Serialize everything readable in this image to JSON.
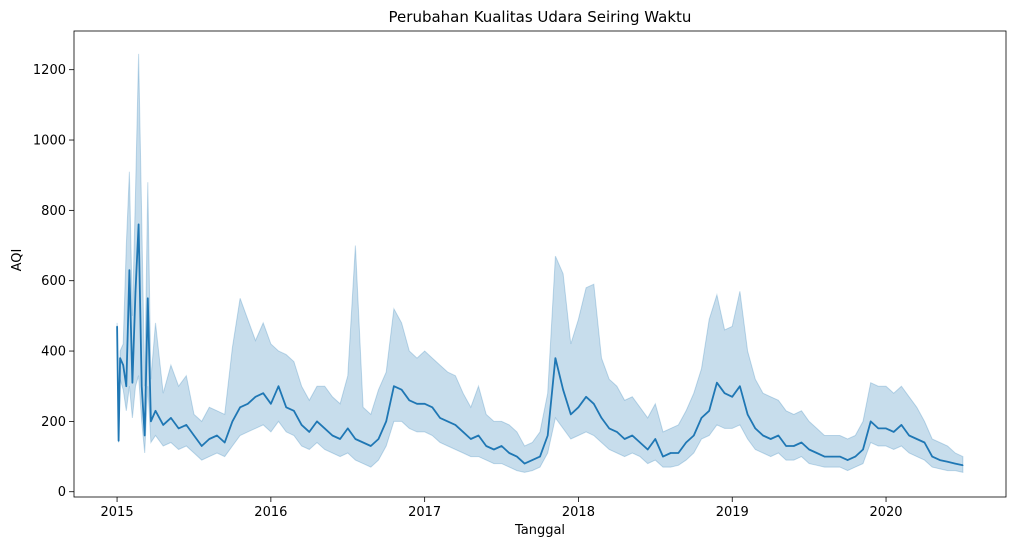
{
  "chart_data": {
    "type": "line",
    "title": "Perubahan Kualitas Udara Seiring Waktu",
    "xlabel": "Tanggal",
    "ylabel": "AQI",
    "xlim": [
      2014.72,
      2020.78
    ],
    "ylim": [
      -15,
      1310
    ],
    "x_ticks": [
      {
        "value": 2015,
        "label": "2015"
      },
      {
        "value": 2016,
        "label": "2016"
      },
      {
        "value": 2017,
        "label": "2017"
      },
      {
        "value": 2018,
        "label": "2018"
      },
      {
        "value": 2019,
        "label": "2019"
      },
      {
        "value": 2020,
        "label": "2020"
      }
    ],
    "y_ticks": [
      {
        "value": 0,
        "label": "0"
      },
      {
        "value": 200,
        "label": "200"
      },
      {
        "value": 400,
        "label": "400"
      },
      {
        "value": 600,
        "label": "600"
      },
      {
        "value": 800,
        "label": "800"
      },
      {
        "value": 1000,
        "label": "1000"
      },
      {
        "value": 1200,
        "label": "1200"
      }
    ],
    "grid": false,
    "legend": "none",
    "series": [
      {
        "color": "#1f77b4",
        "band_color": "#1f77b4",
        "band_opacity": 0.25,
        "x": [
          2015.0,
          2015.01,
          2015.02,
          2015.04,
          2015.06,
          2015.08,
          2015.1,
          2015.12,
          2015.14,
          2015.16,
          2015.18,
          2015.2,
          2015.22,
          2015.25,
          2015.3,
          2015.35,
          2015.4,
          2015.45,
          2015.5,
          2015.55,
          2015.6,
          2015.65,
          2015.7,
          2015.75,
          2015.8,
          2015.85,
          2015.9,
          2015.95,
          2016.0,
          2016.05,
          2016.1,
          2016.15,
          2016.2,
          2016.25,
          2016.3,
          2016.35,
          2016.4,
          2016.45,
          2016.5,
          2016.55,
          2016.6,
          2016.65,
          2016.7,
          2016.75,
          2016.8,
          2016.85,
          2016.9,
          2016.95,
          2017.0,
          2017.05,
          2017.1,
          2017.15,
          2017.2,
          2017.25,
          2017.3,
          2017.35,
          2017.4,
          2017.45,
          2017.5,
          2017.55,
          2017.6,
          2017.65,
          2017.7,
          2017.75,
          2017.8,
          2017.85,
          2017.9,
          2017.95,
          2018.0,
          2018.05,
          2018.1,
          2018.15,
          2018.2,
          2018.25,
          2018.3,
          2018.35,
          2018.4,
          2018.45,
          2018.5,
          2018.55,
          2018.6,
          2018.65,
          2018.7,
          2018.75,
          2018.8,
          2018.85,
          2018.9,
          2018.95,
          2019.0,
          2019.05,
          2019.1,
          2019.15,
          2019.2,
          2019.25,
          2019.3,
          2019.35,
          2019.4,
          2019.45,
          2019.5,
          2019.55,
          2019.6,
          2019.65,
          2019.7,
          2019.75,
          2019.8,
          2019.85,
          2019.9,
          2019.95,
          2020.0,
          2020.05,
          2020.1,
          2020.15,
          2020.2,
          2020.25,
          2020.3,
          2020.35,
          2020.4,
          2020.45,
          2020.5
        ],
        "y": [
          470,
          145,
          380,
          360,
          300,
          630,
          310,
          570,
          760,
          300,
          160,
          550,
          200,
          230,
          190,
          210,
          180,
          190,
          160,
          130,
          150,
          160,
          140,
          200,
          240,
          250,
          270,
          280,
          250,
          300,
          240,
          230,
          190,
          170,
          200,
          180,
          160,
          150,
          180,
          150,
          140,
          130,
          150,
          200,
          300,
          290,
          260,
          250,
          250,
          240,
          210,
          200,
          190,
          170,
          150,
          160,
          130,
          120,
          130,
          110,
          100,
          80,
          90,
          100,
          160,
          380,
          290,
          220,
          240,
          270,
          250,
          210,
          180,
          170,
          150,
          160,
          140,
          120,
          150,
          100,
          110,
          110,
          140,
          160,
          210,
          230,
          310,
          280,
          270,
          300,
          220,
          180,
          160,
          150,
          160,
          130,
          130,
          140,
          120,
          110,
          100,
          100,
          100,
          90,
          100,
          120,
          200,
          180,
          180,
          170,
          190,
          160,
          150,
          140,
          100,
          90,
          85,
          80,
          75
        ],
        "upper": [
          480,
          200,
          400,
          420,
          700,
          910,
          500,
          850,
          1245,
          780,
          300,
          880,
          320,
          480,
          280,
          360,
          300,
          330,
          220,
          200,
          240,
          230,
          220,
          410,
          550,
          490,
          430,
          480,
          420,
          400,
          390,
          370,
          300,
          260,
          300,
          300,
          270,
          250,
          330,
          700,
          240,
          220,
          290,
          340,
          520,
          480,
          400,
          380,
          400,
          380,
          360,
          340,
          330,
          280,
          240,
          300,
          220,
          200,
          200,
          190,
          170,
          130,
          140,
          170,
          280,
          670,
          620,
          420,
          490,
          580,
          590,
          380,
          320,
          300,
          260,
          270,
          240,
          210,
          250,
          170,
          180,
          190,
          230,
          280,
          350,
          490,
          560,
          460,
          470,
          570,
          400,
          320,
          280,
          270,
          260,
          230,
          220,
          230,
          200,
          180,
          160,
          160,
          160,
          150,
          160,
          200,
          310,
          300,
          300,
          280,
          300,
          270,
          240,
          200,
          150,
          140,
          130,
          110,
          100
        ],
        "lower": [
          460,
          140,
          320,
          290,
          230,
          300,
          210,
          300,
          330,
          200,
          110,
          300,
          140,
          160,
          130,
          140,
          120,
          130,
          110,
          90,
          100,
          110,
          100,
          130,
          160,
          170,
          180,
          190,
          170,
          200,
          170,
          160,
          130,
          120,
          140,
          120,
          110,
          100,
          110,
          90,
          80,
          70,
          90,
          130,
          200,
          200,
          180,
          170,
          170,
          160,
          140,
          130,
          120,
          110,
          100,
          100,
          90,
          80,
          80,
          70,
          60,
          55,
          60,
          70,
          110,
          210,
          180,
          150,
          160,
          170,
          160,
          140,
          120,
          110,
          100,
          110,
          100,
          80,
          90,
          70,
          70,
          75,
          90,
          110,
          150,
          160,
          190,
          180,
          180,
          190,
          150,
          120,
          110,
          100,
          110,
          90,
          90,
          100,
          80,
          75,
          70,
          70,
          70,
          60,
          70,
          80,
          140,
          130,
          130,
          120,
          130,
          110,
          100,
          90,
          70,
          65,
          60,
          60,
          55
        ]
      }
    ]
  }
}
